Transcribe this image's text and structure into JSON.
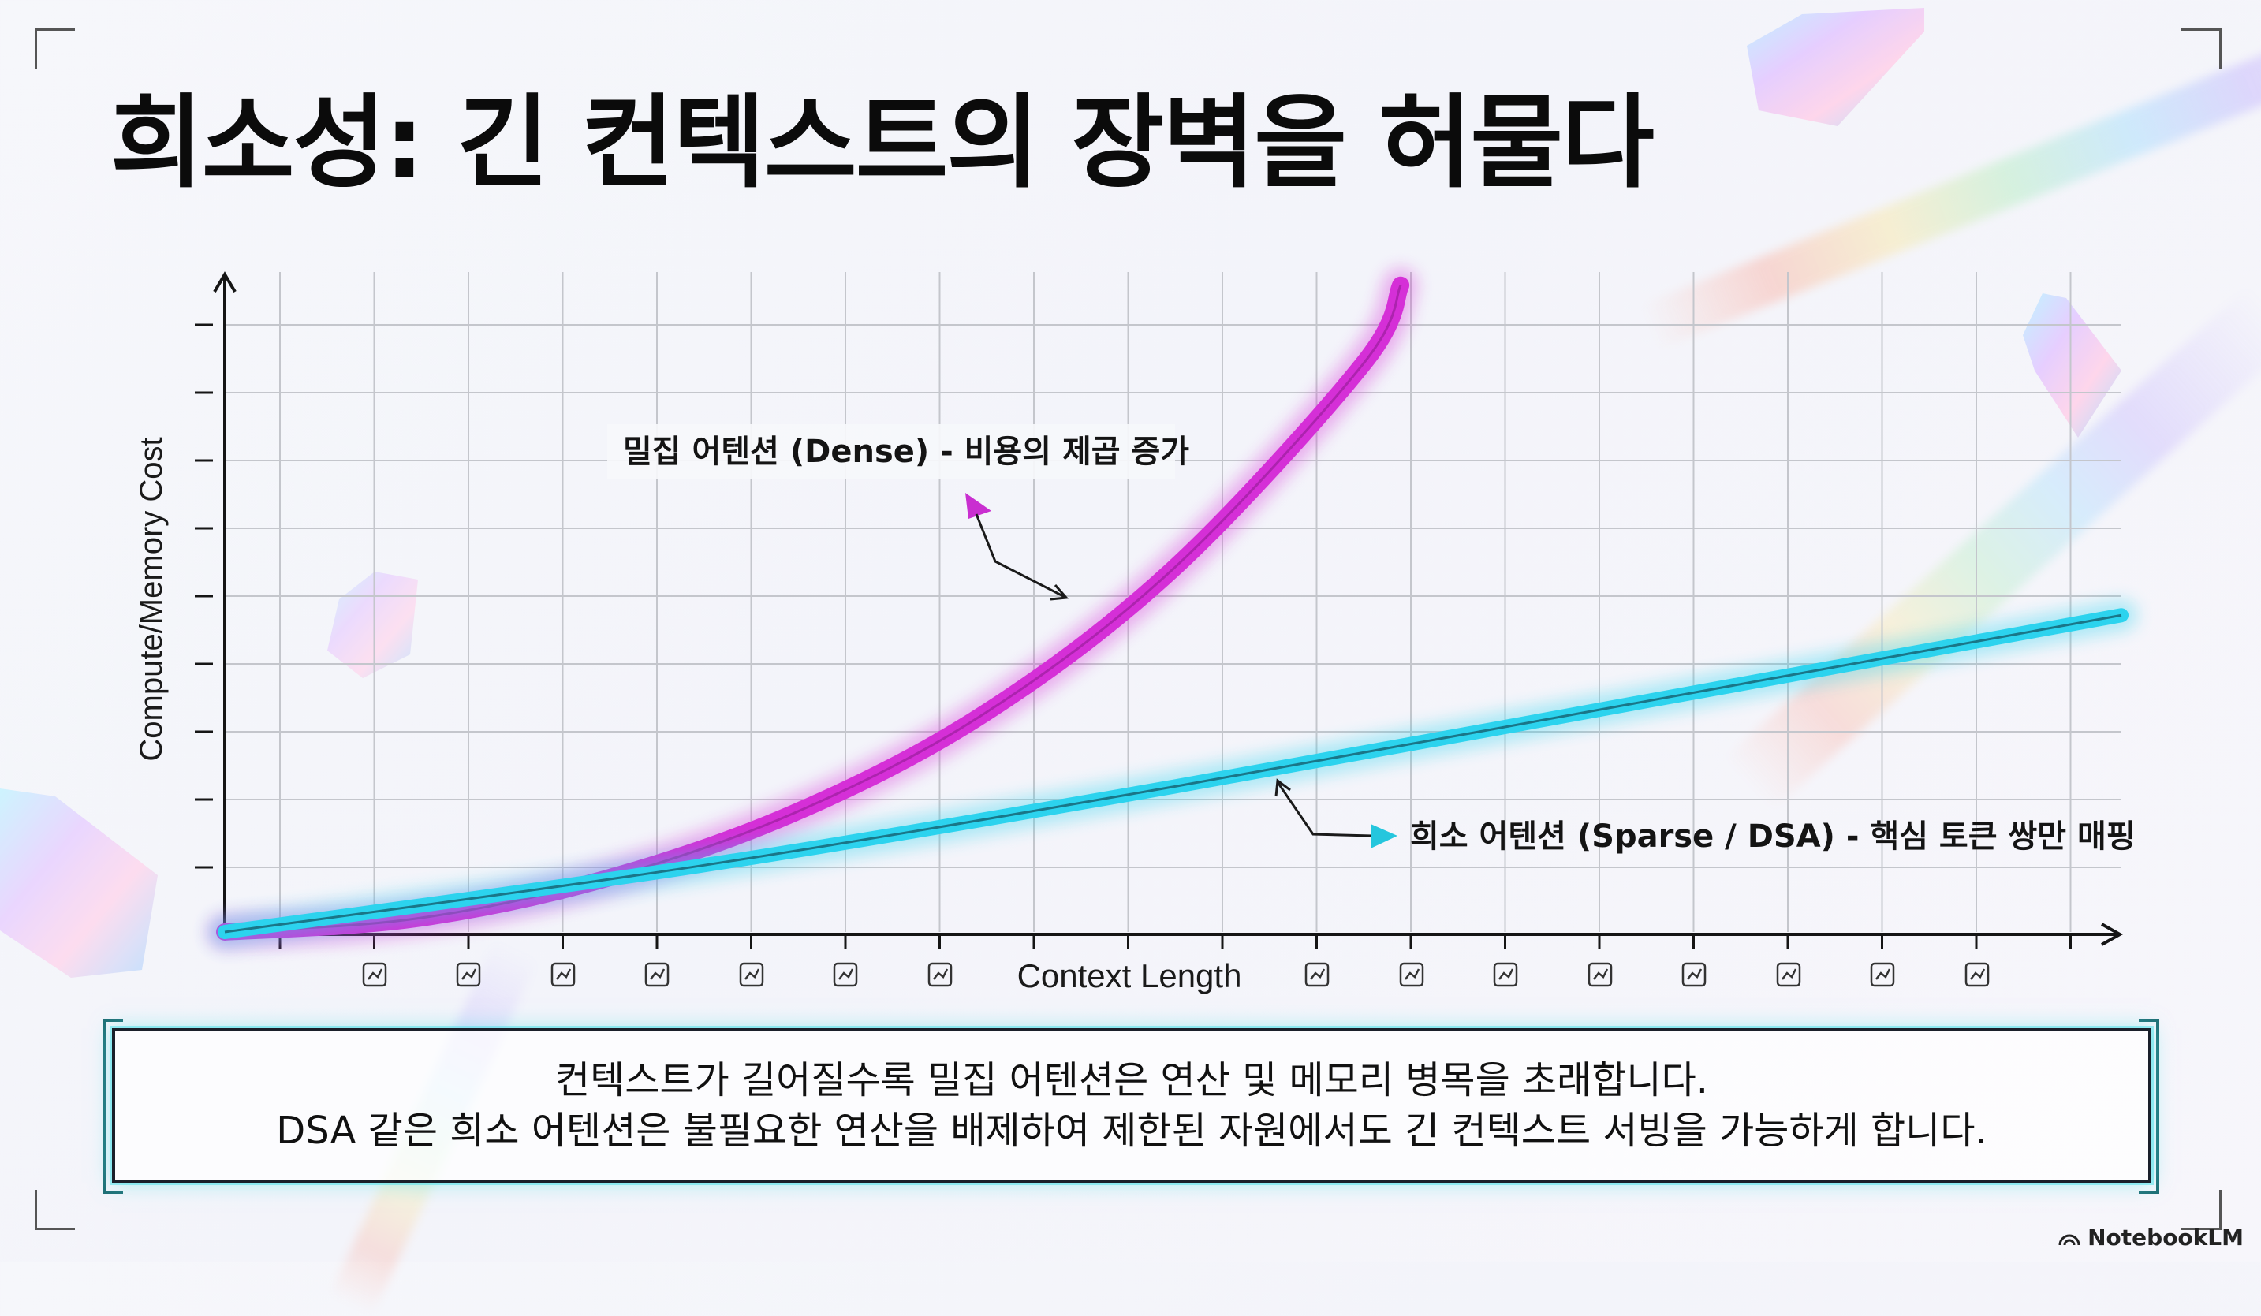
{
  "title": "희소성: 긴 컨텍스트의 장벽을 허물다",
  "chart_data": {
    "type": "line",
    "xlabel": "Context Length",
    "ylabel": "Compute/Memory Cost",
    "xlim": [
      0,
      1
    ],
    "ylim": [
      0,
      1
    ],
    "grid": true,
    "ticks_labeled": false,
    "series": [
      {
        "name": "밀집 어텐션 (Dense) - 비용의 제곱 증가",
        "color": "#d52fd7",
        "x": [
          0,
          0.1,
          0.2,
          0.3,
          0.4,
          0.5,
          0.6,
          0.62
        ],
        "y": [
          0,
          0.02,
          0.08,
          0.18,
          0.33,
          0.55,
          0.86,
          0.98
        ]
      },
      {
        "name": "희소 어텐션 (Sparse / DSA) - 핵심 토큰 쌍만 매핑",
        "color": "#2cd3ee",
        "x": [
          0,
          0.25,
          0.5,
          0.75,
          1.0
        ],
        "y": [
          0,
          0.1,
          0.22,
          0.35,
          0.48
        ]
      }
    ],
    "annotations": [
      "밀집 어텐션 (Dense) - 비용의 제곱 증가",
      "희소 어텐션 (Sparse / DSA) - 핵심 토큰 쌍만 매핑"
    ],
    "x_axis_icons": [
      "cursor-spark-icon",
      "connected-nodes-icon",
      "trend-box-icon",
      "dot-grid-icon",
      "waveform-icon",
      "bar-chart-icon",
      "list-icon",
      "network-icon",
      "line-up-icon",
      "table-grid-icon",
      "branch-icon",
      "link-icon",
      "gear-flower-icon",
      "cube-icon",
      "magnifier-icon"
    ]
  },
  "caption": {
    "line1": "컨텍스트가 길어질수록 밀집 어텐션은 연산 및 메모리 병목을 초래합니다.",
    "line2": "DSA 같은 희소 어텐션은 불필요한 연산을 배제하여 제한된 자원에서도 긴 컨텍스트 서빙을 가능하게 합니다."
  },
  "brand": "NotebookLM",
  "colors": {
    "dense": "#d52fd7",
    "sparse": "#2cd3ee",
    "grid": "#c4c6cc",
    "axis": "#151515"
  }
}
